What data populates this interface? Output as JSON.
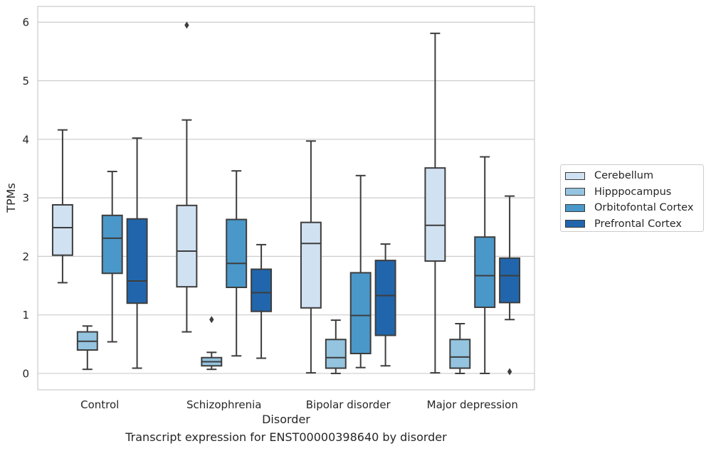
{
  "chart_data": {
    "type": "box",
    "xlabel": "Disorder",
    "ylabel": "TPMs",
    "ylim": [
      -0.28,
      6.27
    ],
    "yticks": [
      0,
      1,
      2,
      3,
      4,
      5,
      6
    ],
    "grid": true,
    "legend_position": "right",
    "categories": [
      "Control",
      "Schizophrenia",
      "Bipolar disorder",
      "Major depression"
    ],
    "series": [
      {
        "name": "Cerebellum",
        "color": "#d0e1f2",
        "boxes": [
          {
            "whisker_low": 1.55,
            "q1": 2.02,
            "median": 2.49,
            "q3": 2.88,
            "whisker_high": 4.16,
            "outliers": []
          },
          {
            "whisker_low": 0.71,
            "q1": 1.48,
            "median": 2.09,
            "q3": 2.87,
            "whisker_high": 4.33,
            "outliers": [
              5.95
            ]
          },
          {
            "whisker_low": 0.01,
            "q1": 1.12,
            "median": 2.22,
            "q3": 2.58,
            "whisker_high": 3.97,
            "outliers": []
          },
          {
            "whisker_low": 0.01,
            "q1": 1.92,
            "median": 2.53,
            "q3": 3.51,
            "whisker_high": 5.81,
            "outliers": []
          }
        ]
      },
      {
        "name": "Hipppocampus",
        "color": "#94c4df",
        "boxes": [
          {
            "whisker_low": 0.07,
            "q1": 0.4,
            "median": 0.55,
            "q3": 0.71,
            "whisker_high": 0.81,
            "outliers": []
          },
          {
            "whisker_low": 0.07,
            "q1": 0.13,
            "median": 0.2,
            "q3": 0.27,
            "whisker_high": 0.36,
            "outliers": [
              0.92
            ]
          },
          {
            "whisker_low": 0.0,
            "q1": 0.09,
            "median": 0.27,
            "q3": 0.58,
            "whisker_high": 0.91,
            "outliers": []
          },
          {
            "whisker_low": 0.0,
            "q1": 0.09,
            "median": 0.28,
            "q3": 0.58,
            "whisker_high": 0.85,
            "outliers": []
          }
        ]
      },
      {
        "name": "Orbitofontal Cortex",
        "color": "#4a98c9",
        "boxes": [
          {
            "whisker_low": 0.54,
            "q1": 1.71,
            "median": 2.31,
            "q3": 2.7,
            "whisker_high": 3.45,
            "outliers": []
          },
          {
            "whisker_low": 0.3,
            "q1": 1.47,
            "median": 1.88,
            "q3": 2.63,
            "whisker_high": 3.46,
            "outliers": []
          },
          {
            "whisker_low": 0.1,
            "q1": 0.34,
            "median": 0.99,
            "q3": 1.72,
            "whisker_high": 3.38,
            "outliers": []
          },
          {
            "whisker_low": 0.0,
            "q1": 1.13,
            "median": 1.67,
            "q3": 2.33,
            "whisker_high": 3.7,
            "outliers": []
          }
        ]
      },
      {
        "name": "Prefrontal Cortex",
        "color": "#2166ac",
        "boxes": [
          {
            "whisker_low": 0.09,
            "q1": 1.2,
            "median": 1.58,
            "q3": 2.64,
            "whisker_high": 4.02,
            "outliers": []
          },
          {
            "whisker_low": 0.26,
            "q1": 1.06,
            "median": 1.38,
            "q3": 1.78,
            "whisker_high": 2.2,
            "outliers": []
          },
          {
            "whisker_low": 0.13,
            "q1": 0.65,
            "median": 1.33,
            "q3": 1.93,
            "whisker_high": 2.21,
            "outliers": []
          },
          {
            "whisker_low": 0.92,
            "q1": 1.21,
            "median": 1.67,
            "q3": 1.97,
            "whisker_high": 3.03,
            "outliers": [
              0.03
            ]
          }
        ]
      }
    ],
    "caption": "Transcript expression for ENST00000398640 by disorder"
  }
}
